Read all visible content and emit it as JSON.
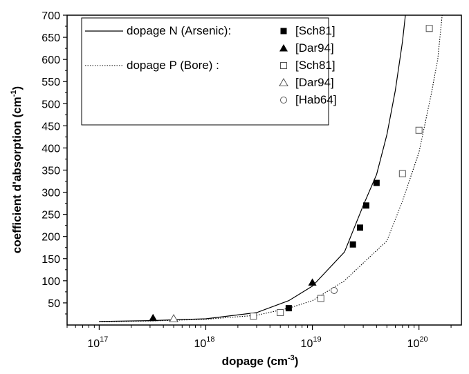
{
  "chart_data": {
    "type": "scatter",
    "xlabel": "dopage (cm-3)",
    "ylabel": "coefficient d'absorption (cm-1)",
    "x_scale": "log",
    "xlim": [
      5e+16,
      2.5e+20
    ],
    "ylim": [
      0,
      700
    ],
    "x_ticks": [
      {
        "value": 1e+17,
        "label": "10",
        "exp": "17"
      },
      {
        "value": 1e+18,
        "label": "10",
        "exp": "18"
      },
      {
        "value": 1e+19,
        "label": "10",
        "exp": "19"
      },
      {
        "value": 1e+20,
        "label": "10",
        "exp": "20"
      }
    ],
    "y_ticks": [
      50,
      100,
      150,
      200,
      250,
      300,
      350,
      400,
      450,
      500,
      550,
      600,
      650,
      700
    ],
    "grid": false,
    "legend_position": "top-left",
    "curves": [
      {
        "name": "dopage N (Arsenic):",
        "line_style": "solid",
        "points": [
          [
            1e+17,
            8
          ],
          [
            3e+17,
            10
          ],
          [
            1e+18,
            14
          ],
          [
            3e+18,
            28
          ],
          [
            6e+18,
            55
          ],
          [
            1e+19,
            88
          ],
          [
            2e+19,
            165
          ],
          [
            3e+19,
            270
          ],
          [
            4e+19,
            340
          ],
          [
            5e+19,
            430
          ],
          [
            6e+19,
            530
          ],
          [
            7e+19,
            640
          ],
          [
            7.5e+19,
            705
          ]
        ]
      },
      {
        "name": "dopage P (Bore)   :",
        "line_style": "dotted",
        "points": [
          [
            1e+17,
            7
          ],
          [
            3e+17,
            9
          ],
          [
            1e+18,
            13
          ],
          [
            3e+18,
            22
          ],
          [
            6e+18,
            38
          ],
          [
            1e+19,
            55
          ],
          [
            2e+19,
            100
          ],
          [
            3e+19,
            140
          ],
          [
            5e+19,
            190
          ],
          [
            7e+19,
            280
          ],
          [
            1e+20,
            390
          ],
          [
            1.3e+20,
            520
          ],
          [
            1.5e+20,
            600
          ],
          [
            1.65e+20,
            700
          ]
        ]
      }
    ],
    "series": [
      {
        "name": "[Sch81]",
        "marker": "filled-square",
        "points": [
          [
            6e+18,
            38
          ],
          [
            2.4e+19,
            182
          ],
          [
            2.8e+19,
            220
          ],
          [
            3.2e+19,
            270
          ],
          [
            4e+19,
            321
          ]
        ]
      },
      {
        "name": "[Dar94]",
        "marker": "filled-triangle",
        "points": [
          [
            3.2e+17,
            16
          ],
          [
            1e+19,
            96
          ]
        ]
      },
      {
        "name": "[Sch81]",
        "marker": "open-square",
        "points": [
          [
            2.8e+18,
            20
          ],
          [
            5e+18,
            28
          ],
          [
            1.2e+19,
            60
          ],
          [
            7e+19,
            342
          ],
          [
            1e+20,
            440
          ],
          [
            1.25e+20,
            670
          ]
        ]
      },
      {
        "name": "[Dar94]",
        "marker": "open-triangle",
        "points": [
          [
            5e+17,
            14
          ]
        ]
      },
      {
        "name": "[Hab64]",
        "marker": "open-circle",
        "points": [
          [
            1.6e+19,
            78
          ]
        ]
      }
    ]
  }
}
